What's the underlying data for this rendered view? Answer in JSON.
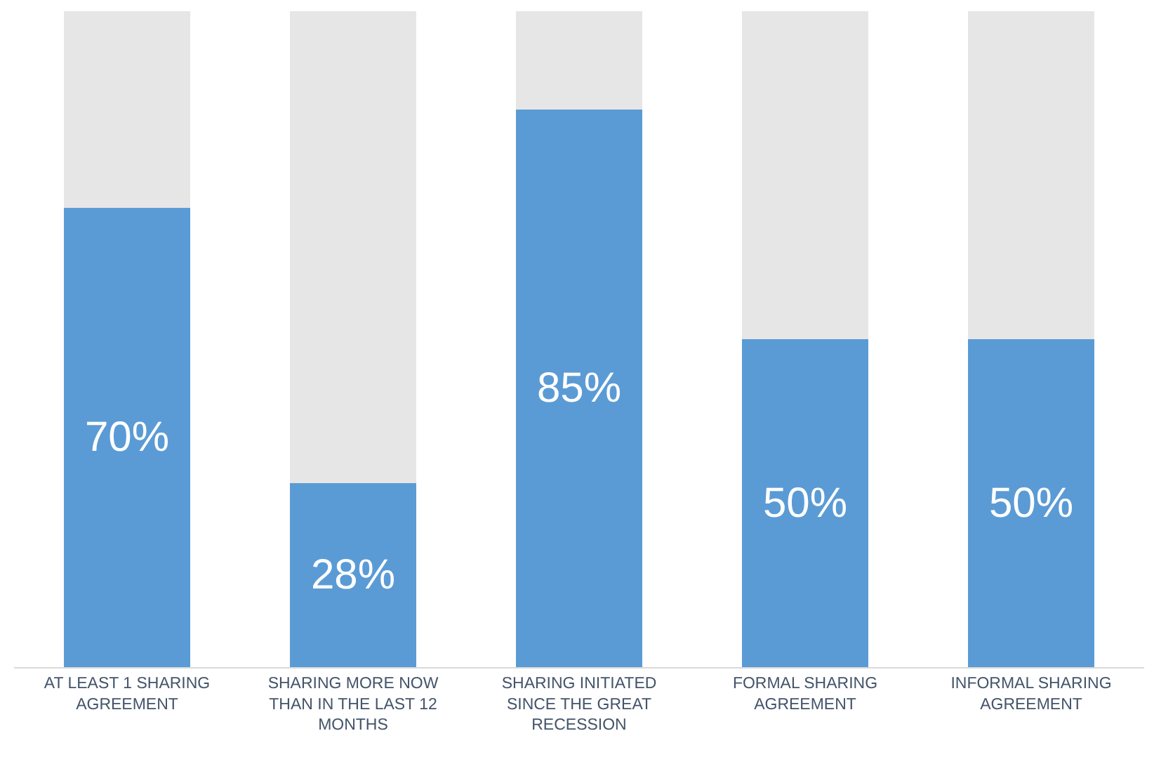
{
  "chart_data": {
    "type": "bar",
    "stacked": true,
    "categories": [
      "AT LEAST 1 SHARING AGREEMENT",
      "SHARING MORE NOW THAN IN THE LAST 12 MONTHS",
      "SHARING INITIATED SINCE THE GREAT RECESSION",
      "FORMAL SHARING AGREEMENT",
      "INFORMAL SHARING AGREEMENT"
    ],
    "series": [
      {
        "color": "#5b9bd5",
        "values": [
          70,
          28,
          85,
          50,
          50
        ],
        "value_labels": [
          "70%",
          "28%",
          "85%",
          "50%",
          "50%"
        ]
      },
      {
        "color": "#e7e6e6",
        "values": [
          30,
          72,
          15,
          50,
          50
        ]
      }
    ],
    "ylim": [
      0,
      100
    ],
    "tick_labels": "x"
  }
}
